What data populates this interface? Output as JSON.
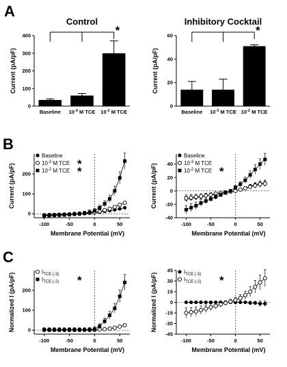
{
  "panel_labels": [
    "A",
    "B",
    "C"
  ],
  "chart_data": [
    {
      "id": "A-left",
      "type": "bar",
      "title": "Control",
      "ylabel": "Current (pA/pF)",
      "ylim": [
        0,
        400
      ],
      "yticks": [
        0,
        100,
        200,
        300,
        400
      ],
      "categories": [
        "Baseline",
        "10-3 M TCE",
        "10-2 M TCE"
      ],
      "values": [
        35,
        60,
        300
      ],
      "errors": [
        6,
        12,
        70
      ],
      "significance": "*"
    },
    {
      "id": "A-right",
      "type": "bar",
      "title": "Inhibitory Cocktail",
      "ylabel": "Current (pA/pF)",
      "ylim": [
        0,
        60
      ],
      "yticks": [
        0,
        20,
        40,
        60
      ],
      "categories": [
        "Baseline",
        "10-3 M TCE",
        "10-2 M TCE"
      ],
      "values": [
        14,
        14,
        51
      ],
      "errors": [
        7,
        9,
        1.2
      ],
      "significance": "*"
    },
    {
      "id": "B-left",
      "type": "line",
      "xlabel": "Membrane Potential (mV)",
      "ylabel": "Current (pA/pF)",
      "xlim": [
        -120,
        70
      ],
      "xticks": [
        -100,
        -50,
        0,
        50
      ],
      "ylim": [
        -20,
        300
      ],
      "yticks": [
        0,
        100,
        200
      ],
      "x": [
        -100,
        -90,
        -80,
        -70,
        -60,
        -50,
        -40,
        -30,
        -20,
        -10,
        0,
        10,
        20,
        30,
        40,
        50,
        60
      ],
      "series": [
        {
          "name": "Baseline",
          "marker": "filled-circle",
          "values": [
            -6,
            -5,
            -4,
            -4,
            -3,
            -2,
            -1,
            0,
            1,
            3,
            5,
            8,
            12,
            16,
            20,
            25,
            30
          ],
          "err": 3
        },
        {
          "name": "10-3 M TCE",
          "marker": "open-circle",
          "sig": "*",
          "values": [
            -8,
            -7,
            -6,
            -5,
            -4,
            -3,
            -1,
            0,
            2,
            4,
            7,
            12,
            18,
            25,
            34,
            45,
            55
          ],
          "err": 6
        },
        {
          "name": "10-2 M TCE",
          "marker": "filled-square",
          "sig": "*",
          "values": [
            -10,
            -9,
            -8,
            -7,
            -6,
            -4,
            -2,
            0,
            3,
            8,
            15,
            30,
            50,
            75,
            115,
            180,
            265
          ],
          "err": 40
        }
      ]
    },
    {
      "id": "B-right",
      "type": "line",
      "xlabel": "Membrane Potential (mV)",
      "ylabel": "Current (pA/pF)",
      "xlim": [
        -120,
        70
      ],
      "xticks": [
        -100,
        -50,
        0,
        50
      ],
      "ylim": [
        -40,
        55
      ],
      "yticks": [
        -40,
        -20,
        0,
        20,
        40
      ],
      "x": [
        -100,
        -90,
        -80,
        -70,
        -60,
        -50,
        -40,
        -30,
        -20,
        -10,
        0,
        10,
        20,
        30,
        40,
        50,
        60
      ],
      "series": [
        {
          "name": "Baseline",
          "marker": "filled-circle",
          "values": [
            -12,
            -11,
            -10,
            -9,
            -7,
            -6,
            -5,
            -3,
            -2,
            -1,
            0,
            2,
            4,
            7,
            9,
            11,
            12
          ],
          "err": 4
        },
        {
          "name": "10-3 M TCE",
          "marker": "open-circle",
          "values": [
            -11,
            -10,
            -9,
            -8,
            -7,
            -6,
            -4,
            -3,
            -2,
            -1,
            0,
            2,
            4,
            6,
            8,
            10,
            11
          ],
          "err": 5
        },
        {
          "name": "10-2 M TCE",
          "marker": "filled-square",
          "sig": "*",
          "values": [
            -28,
            -25,
            -22,
            -18,
            -15,
            -12,
            -9,
            -6,
            -3,
            0,
            5,
            10,
            16,
            24,
            32,
            40,
            47
          ],
          "err": 9
        }
      ]
    },
    {
      "id": "C-left",
      "type": "line",
      "xlabel": "Membrane Potential (mV)",
      "ylabel": "Normalized I (pA/pF)",
      "xlim": [
        -120,
        70
      ],
      "xticks": [
        -100,
        -50,
        0,
        50
      ],
      "ylim": [
        -20,
        300
      ],
      "yticks": [
        0,
        100,
        200
      ],
      "x": [
        -100,
        -90,
        -80,
        -70,
        -60,
        -50,
        -40,
        -30,
        -20,
        -10,
        0,
        10,
        20,
        30,
        40,
        50,
        60
      ],
      "series": [
        {
          "name": "I",
          "sub": "TCE (-3)",
          "marker": "open-circle",
          "values": [
            1,
            1,
            1,
            1,
            1,
            1,
            1,
            1,
            1,
            1,
            1,
            3,
            5,
            8,
            12,
            18,
            25
          ],
          "err": 4
        },
        {
          "name": "I",
          "sub": "TCE (-2)",
          "marker": "filled-square",
          "sig": "*",
          "values": [
            2,
            2,
            2,
            2,
            2,
            2,
            2,
            2,
            2,
            3,
            5,
            20,
            45,
            75,
            110,
            170,
            240
          ],
          "err": 40
        }
      ]
    },
    {
      "id": "C-right",
      "type": "line",
      "xlabel": "Membrane Potential (mV)",
      "ylabel": "Normalized I (pA/pF)",
      "xlim": [
        -120,
        70
      ],
      "xticks": [
        -100,
        -50,
        0,
        50
      ],
      "ylim": [
        -45,
        45
      ],
      "yticks": [
        -45,
        -30,
        -15,
        0,
        15,
        30,
        45
      ],
      "x": [
        -100,
        -90,
        -80,
        -70,
        -60,
        -50,
        -40,
        -30,
        -20,
        -10,
        0,
        10,
        20,
        30,
        40,
        50,
        60
      ],
      "series": [
        {
          "name": "I",
          "sub": "TCE (-3)",
          "marker": "filled-circle",
          "values": [
            0,
            0,
            0,
            0,
            0,
            0,
            0,
            0,
            0,
            0,
            0,
            0,
            0,
            -1,
            -1,
            -2,
            -2
          ],
          "err": 4
        },
        {
          "name": "I",
          "sub": "TCE (-2)",
          "marker": "open-circle",
          "sig": "*",
          "values": [
            -15,
            -14,
            -13,
            -11,
            -9,
            -7,
            -5,
            -3,
            -1,
            1,
            3,
            6,
            10,
            15,
            22,
            28,
            34
          ],
          "err": 12
        }
      ]
    }
  ]
}
